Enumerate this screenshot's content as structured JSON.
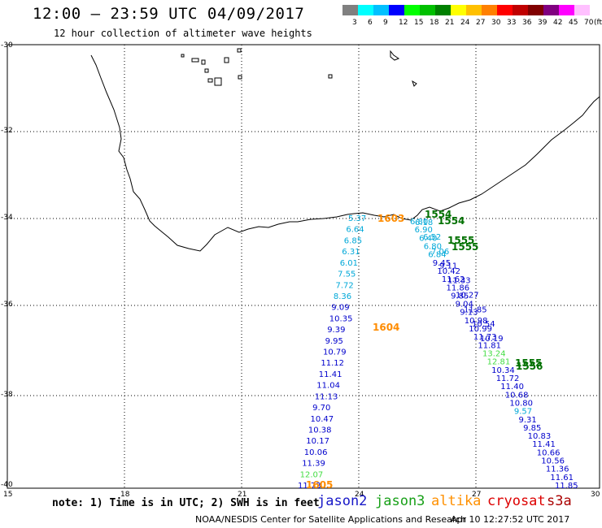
{
  "header": {
    "title": "12:00 – 23:59 UTC 04/09/2017",
    "subtitle": "12 hour collection of altimeter wave heights"
  },
  "legend": {
    "unit": "(ft)",
    "bins": [
      {
        "label": "3",
        "color": "#808080"
      },
      {
        "label": "6",
        "color": "#00ffff"
      },
      {
        "label": "9",
        "color": "#00c0ff"
      },
      {
        "label": "12",
        "color": "#0000ff"
      },
      {
        "label": "15",
        "color": "#00ff00"
      },
      {
        "label": "18",
        "color": "#00c000"
      },
      {
        "label": "21",
        "color": "#008000"
      },
      {
        "label": "24",
        "color": "#ffff00"
      },
      {
        "label": "27",
        "color": "#ffc000"
      },
      {
        "label": "30",
        "color": "#ff8000"
      },
      {
        "label": "33",
        "color": "#ff0000"
      },
      {
        "label": "36",
        "color": "#c00000"
      },
      {
        "label": "39",
        "color": "#800000"
      },
      {
        "label": "42",
        "color": "#800080"
      },
      {
        "label": "45",
        "color": "#ff00ff"
      },
      {
        "label": "70",
        "color": "#ffc0ff"
      }
    ]
  },
  "axes": {
    "lon_ticks": [
      "15",
      "18",
      "21",
      "24",
      "27",
      "30"
    ],
    "lat_ticks": [
      "-30",
      "-32",
      "-34",
      "-36",
      "-38",
      "-40"
    ]
  },
  "time_labels": [
    {
      "text": "1603",
      "color": "#ff8c00"
    },
    {
      "text": "1554",
      "color": "#007000"
    },
    {
      "text": "1554",
      "color": "#007000"
    },
    {
      "text": "1555",
      "color": "#007000"
    },
    {
      "text": "1555",
      "color": "#007000"
    },
    {
      "text": "1604",
      "color": "#ff8c00"
    },
    {
      "text": "1555",
      "color": "#007000"
    },
    {
      "text": "1556",
      "color": "#007000"
    },
    {
      "text": "1605",
      "color": "#ff8c00"
    }
  ],
  "track_west": {
    "values": [
      "5.37",
      "6.64",
      "6.85",
      "6.31",
      "6.01",
      "7.55",
      "7.72",
      "8.36",
      "9.09",
      "10.35",
      "9.39",
      "9.95",
      "10.79",
      "11.12",
      "11.41",
      "11.04",
      "11.13",
      "9.70",
      "10.47",
      "10.38",
      "10.17",
      "10.06",
      "11.39",
      "12.07",
      "11.73"
    ],
    "colors": [
      "#00a8d8",
      "#00a8d8",
      "#00a8d8",
      "#00a8d8",
      "#00a8d8",
      "#00a8d8",
      "#00a8d8",
      "#00a8d8",
      "#0000cc",
      "#0000cc",
      "#0000cc",
      "#0000cc",
      "#0000cc",
      "#0000cc",
      "#0000cc",
      "#0000cc",
      "#0000cc",
      "#0000cc",
      "#0000cc",
      "#0000cc",
      "#0000cc",
      "#0000cc",
      "#0000cc",
      "#44dd44",
      "#0000cc"
    ]
  },
  "track_east_a": {
    "values": [
      "6.80",
      "6.90",
      "6.40",
      "6.80",
      "6.84",
      "9.45",
      "10.42",
      "11.62",
      "11.86",
      "9.85",
      "9.04",
      "9.13",
      "10.98",
      "10.99",
      "11.73",
      "11.81",
      "13.24",
      "12.81",
      "10.34",
      "11.72",
      "11.40",
      "10.68",
      "10.80",
      "9.57",
      "9.31",
      "9.85",
      "10.83",
      "11.41",
      "10.66",
      "10.56",
      "11.36",
      "11.61",
      "11.85"
    ],
    "colors": [
      "#00a8d8",
      "#00a8d8",
      "#00a8d8",
      "#00a8d8",
      "#00a8d8",
      "#0000cc",
      "#0000cc",
      "#0000cc",
      "#0000cc",
      "#0000cc",
      "#0000cc",
      "#0000cc",
      "#0000cc",
      "#0000cc",
      "#0000cc",
      "#0000cc",
      "#44dd44",
      "#44dd44",
      "#0000cc",
      "#0000cc",
      "#0000cc",
      "#0000cc",
      "#0000cc",
      "#00a8d8",
      "#0000cc",
      "#0000cc",
      "#0000cc",
      "#0000cc",
      "#0000cc",
      "#0000cc",
      "#0000cc",
      "#0000cc",
      "#0000cc"
    ]
  },
  "track_east_b": {
    "values": [
      "6.18",
      "6.52",
      "7.06",
      "9.11",
      "11.33",
      "10.27",
      "11.85",
      "10.54",
      "10.19"
    ],
    "colors": [
      "#00a8d8",
      "#00a8d8",
      "#00a8d8",
      "#0000cc",
      "#0000cc",
      "#0000cc",
      "#0000cc",
      "#0000cc",
      "#0000cc"
    ]
  },
  "footer": {
    "note": "note: 1) Time is in UTC; 2) SWH is in feet",
    "satellites": [
      {
        "name": "jason2",
        "color": "#1818c8"
      },
      {
        "name": "jason3",
        "color": "#18a018"
      },
      {
        "name": "altika",
        "color": "#ff9000"
      },
      {
        "name": "cryosat",
        "color": "#dd0000"
      },
      {
        "name": "s3a",
        "color": "#aa0000"
      }
    ],
    "credit": "NOAA/NESDIS Center for Satellite Applications and Research",
    "timestamp": "Apr 10 12:27:52 UTC 2017"
  }
}
